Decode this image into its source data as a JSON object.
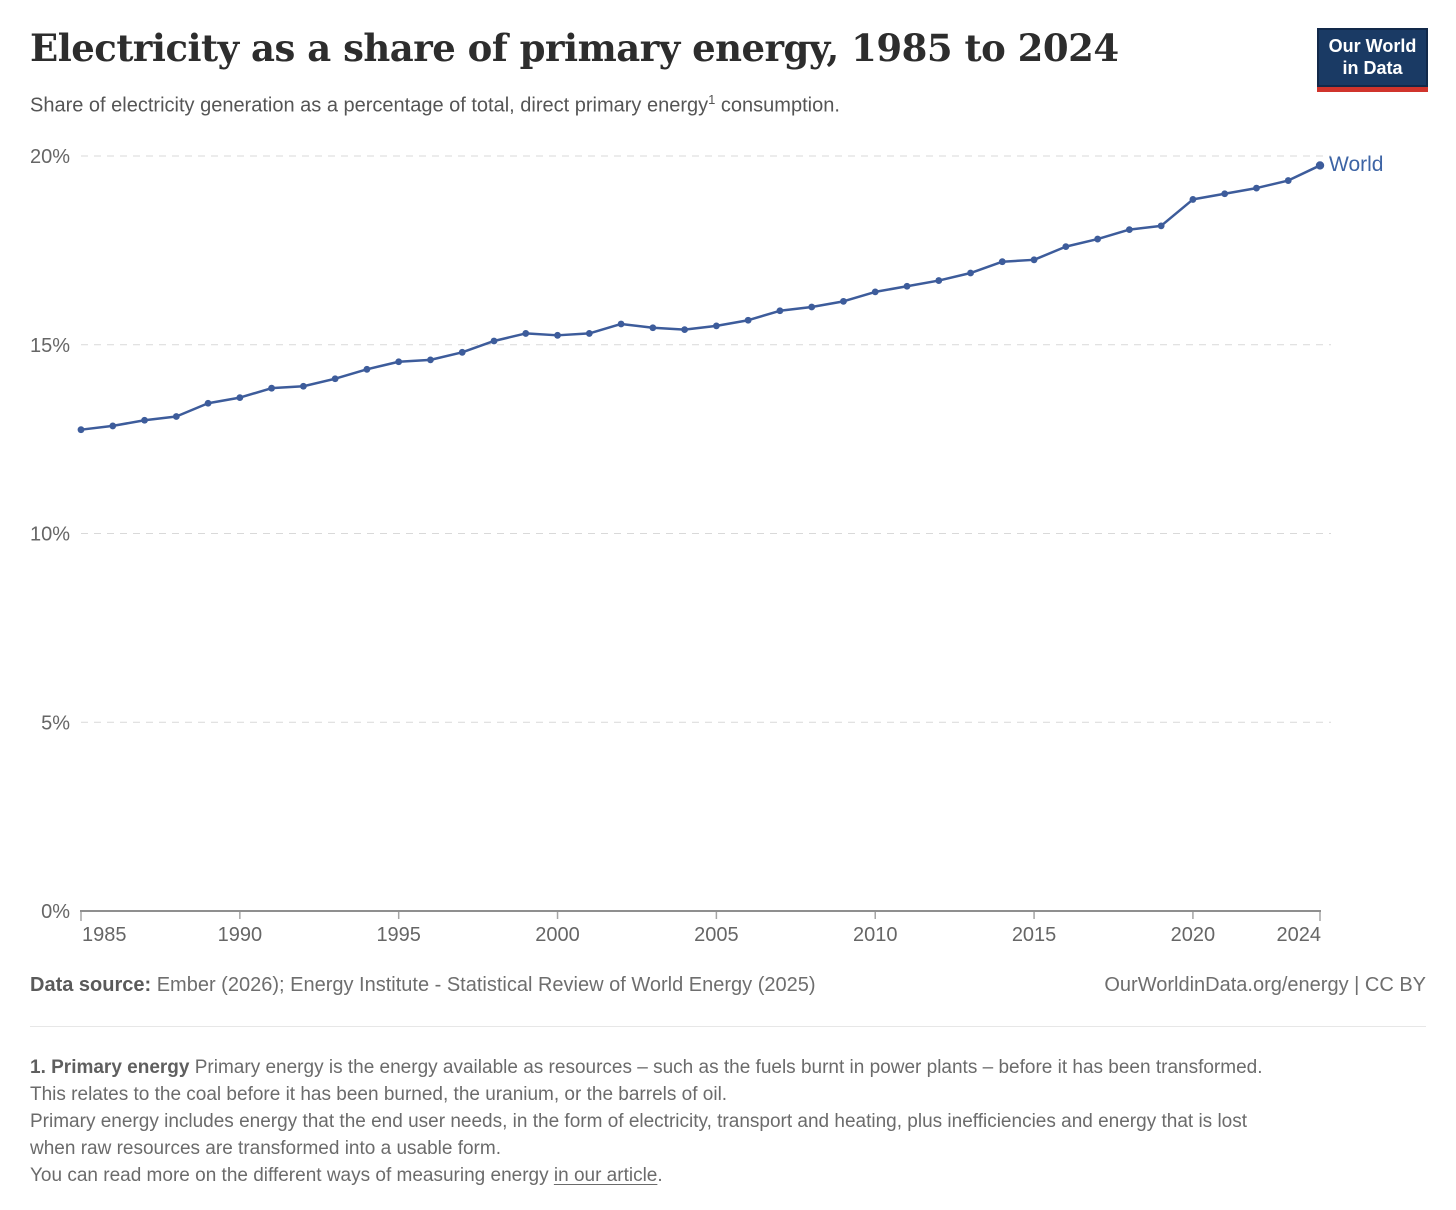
{
  "header": {
    "title": "Electricity as a share of primary energy, 1985 to 2024",
    "subtitle_pre": "Share of electricity generation as a percentage of total, direct primary energy",
    "subtitle_sup": "1",
    "subtitle_post": " consumption.",
    "logo_line1": "Our World",
    "logo_line2": "in Data"
  },
  "chart_data": {
    "type": "line",
    "title": "Electricity as a share of primary energy, 1985 to 2024",
    "xlabel": "",
    "ylabel": "",
    "xlim": [
      1985,
      2024
    ],
    "ylim": [
      0,
      20
    ],
    "grid": "horizontal-dashed",
    "legend": "line-end-label",
    "x_ticks": [
      1985,
      1990,
      1995,
      2000,
      2005,
      2010,
      2015,
      2020,
      2024
    ],
    "y_ticks": [
      {
        "value": 0,
        "label": "0%"
      },
      {
        "value": 5,
        "label": "5%"
      },
      {
        "value": 10,
        "label": "10%"
      },
      {
        "value": 15,
        "label": "15%"
      },
      {
        "value": 20,
        "label": "20%"
      }
    ],
    "x": [
      1985,
      1986,
      1987,
      1988,
      1989,
      1990,
      1991,
      1992,
      1993,
      1994,
      1995,
      1996,
      1997,
      1998,
      1999,
      2000,
      2001,
      2002,
      2003,
      2004,
      2005,
      2006,
      2007,
      2008,
      2009,
      2010,
      2011,
      2012,
      2013,
      2014,
      2015,
      2016,
      2017,
      2018,
      2019,
      2020,
      2021,
      2022,
      2023,
      2024
    ],
    "series": [
      {
        "name": "World",
        "color": "#3d5c9b",
        "values": [
          12.75,
          12.85,
          13.0,
          13.1,
          13.45,
          13.6,
          13.85,
          13.9,
          14.1,
          14.35,
          14.55,
          14.6,
          14.8,
          15.1,
          15.3,
          15.25,
          15.3,
          15.55,
          15.45,
          15.4,
          15.5,
          15.65,
          15.9,
          16.0,
          16.15,
          16.4,
          16.55,
          16.7,
          16.9,
          17.2,
          17.25,
          17.6,
          17.8,
          18.05,
          18.15,
          18.85,
          19.0,
          19.15,
          19.35,
          19.75
        ]
      }
    ]
  },
  "footer": {
    "datasource_label": "Data source:",
    "datasource_text": " Ember (2026); Energy Institute - Statistical Review of World Energy (2025)",
    "rights": "OurWorldinData.org/energy | CC BY"
  },
  "footnote": {
    "term": "1. Primary energy",
    "line1_rest": " Primary energy is the energy available as resources – such as the fuels burnt in power plants – before it has been transformed.",
    "line2": "This relates to the coal before it has been burned, the uranium, or the barrels of oil.",
    "line3": "Primary energy includes energy that the end user needs, in the form of electricity, transport and heating, plus inefficiencies and energy that is lost",
    "line4": "when raw resources are transformed into a usable form.",
    "line5_pre": "You can read more on the different ways of measuring energy ",
    "line5_link": "in our article",
    "line5_post": "."
  },
  "colors": {
    "line_blue": "#3d5c9b",
    "world_label_blue": "#3d64a5",
    "logo_navy": "#1a3a64",
    "logo_red": "#d0342c",
    "grid_gray": "#d9d9d9",
    "axis_gray": "#8f8f8f",
    "tick_label_gray": "#666666"
  }
}
